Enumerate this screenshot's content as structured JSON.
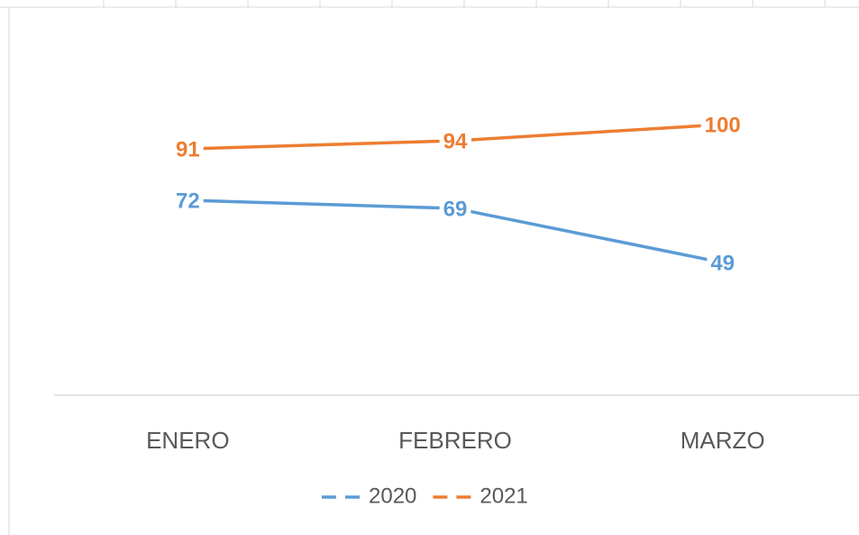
{
  "chart_data": {
    "type": "line",
    "categories": [
      "ENERO",
      "FEBRERO",
      "MARZO"
    ],
    "series": [
      {
        "name": "2020",
        "color": "#5b9bd5",
        "values": [
          72,
          69,
          49
        ]
      },
      {
        "name": "2021",
        "color": "#ed7d31",
        "values": [
          91,
          94,
          100
        ]
      }
    ],
    "ylim": [
      0,
      120
    ],
    "data_labels": true,
    "legend": "bottom"
  }
}
